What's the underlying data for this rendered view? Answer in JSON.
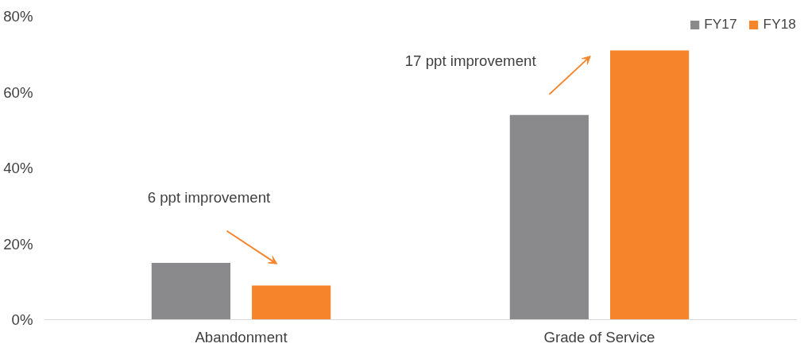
{
  "chart_data": {
    "type": "bar",
    "categories": [
      "Abandonment",
      "Grade of Service"
    ],
    "series": [
      {
        "name": "FY17",
        "color": "#8a8a8d",
        "values": [
          15,
          54
        ]
      },
      {
        "name": "FY18",
        "color": "#f5842a",
        "values": [
          9,
          71
        ]
      }
    ],
    "ylim": [
      0,
      80
    ],
    "yticks": [
      {
        "value": 0,
        "label": "0%"
      },
      {
        "value": 20,
        "label": "20%"
      },
      {
        "value": 40,
        "label": "40%"
      },
      {
        "value": 60,
        "label": "60%"
      },
      {
        "value": 80,
        "label": "80%"
      }
    ],
    "grid": false,
    "legend": "top right",
    "annotations": [
      "6 ppt improvement",
      "17 ppt improvement"
    ]
  }
}
